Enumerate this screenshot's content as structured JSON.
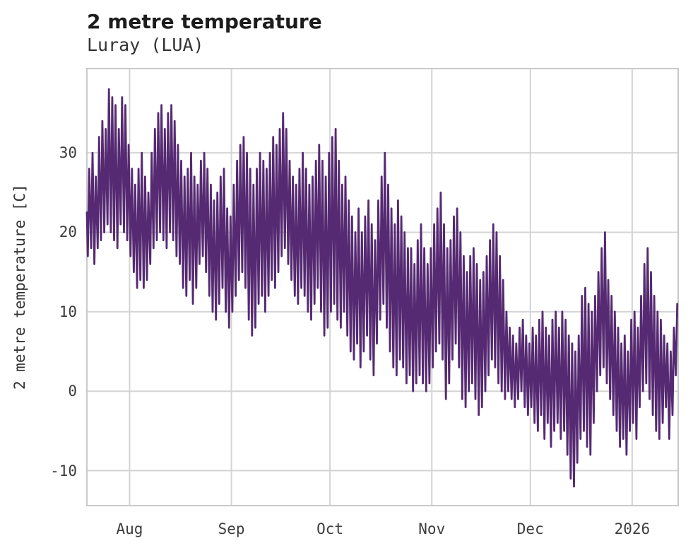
{
  "header": {
    "title": "2 metre temperature",
    "subtitle": "Luray (LUA)"
  },
  "chart_data": {
    "type": "line",
    "title": "2 metre temperature",
    "subtitle": "Luray (LUA)",
    "station": "Luray (LUA)",
    "ylabel": "2 metre temperature [C]",
    "legend_position": "none",
    "grid": true,
    "line_color": "#562a72",
    "grid_color": "#d4d4d4",
    "spine_color": "#c9c9c9",
    "tick_text_color": "#3d3d3d",
    "title_color": "#1c1c1c",
    "ylim": [
      -14.4,
      40.6
    ],
    "yticks": [
      30,
      20,
      10,
      0,
      -10
    ],
    "x_domain_days": [
      0,
      180
    ],
    "x_start": "Jul 19",
    "xticks": [
      {
        "label": "Aug",
        "day": 13
      },
      {
        "label": "Sep",
        "day": 44
      },
      {
        "label": "Oct",
        "day": 74
      },
      {
        "label": "Nov",
        "day": 105
      },
      {
        "label": "Dec",
        "day": 135
      },
      {
        "label": "2026",
        "day": 166
      }
    ],
    "sampling_note": "daily min/max envelope estimated from hourly trace, days from Jul 19 through Jan 14",
    "daily_tmin": [
      17,
      18,
      16,
      18,
      19,
      20,
      21,
      20,
      19,
      18,
      21,
      20,
      19,
      17,
      15,
      13,
      14,
      13,
      14,
      16,
      18,
      19,
      20,
      19,
      18,
      20,
      19,
      17,
      16,
      13,
      12,
      14,
      11,
      13,
      16,
      17,
      15,
      12,
      10,
      9,
      11,
      13,
      10,
      8,
      10,
      12,
      14,
      15,
      13,
      9,
      7,
      8,
      11,
      12,
      10,
      12,
      14,
      13,
      15,
      17,
      18,
      16,
      14,
      12,
      11,
      13,
      12,
      10,
      9,
      11,
      13,
      10,
      7,
      8,
      10,
      11,
      9,
      8,
      10,
      7,
      5,
      4,
      6,
      3,
      5,
      7,
      4,
      2,
      6,
      9,
      11,
      8,
      5,
      3,
      2,
      4,
      3,
      1,
      2,
      0,
      1,
      2,
      1,
      0,
      1,
      3,
      5,
      6,
      4,
      -1,
      1,
      4,
      6,
      3,
      -1,
      -2,
      0,
      1,
      -1,
      -3,
      -2,
      0,
      2,
      4,
      3,
      1,
      0,
      -1,
      0,
      -1,
      -2,
      -1,
      0,
      -2,
      -3,
      -2,
      -4,
      -5,
      -3,
      -6,
      -4,
      -7,
      -5,
      -4,
      -6,
      -5,
      -8,
      -11,
      -12,
      -9,
      -6,
      -5,
      -7,
      -8,
      -4,
      0,
      2,
      3,
      1,
      -1,
      -3,
      -5,
      -7,
      -6,
      -8,
      -5,
      -4,
      -6,
      -2,
      0,
      1,
      -1,
      -3,
      -5,
      -6,
      -4,
      -2,
      -6,
      -3,
      2
    ],
    "daily_tmax": [
      28,
      30,
      27,
      32,
      34,
      33,
      38,
      37,
      36,
      33,
      37,
      36,
      31,
      28,
      26,
      28,
      30,
      27,
      25,
      30,
      33,
      35,
      36,
      33,
      35,
      36,
      34,
      31,
      29,
      27,
      28,
      30,
      27,
      26,
      29,
      30,
      28,
      26,
      24,
      25,
      27,
      28,
      23,
      22,
      26,
      29,
      31,
      32,
      30,
      28,
      26,
      28,
      30,
      29,
      28,
      30,
      32,
      31,
      33,
      35,
      33,
      29,
      27,
      26,
      28,
      30,
      28,
      26,
      27,
      29,
      31,
      29,
      27,
      30,
      32,
      33,
      29,
      26,
      27,
      24,
      22,
      20,
      23,
      20,
      22,
      24,
      21,
      19,
      24,
      27,
      30,
      26,
      23,
      21,
      24,
      22,
      20,
      18,
      18,
      16,
      19,
      21,
      18,
      16,
      18,
      21,
      23,
      25,
      21,
      18,
      19,
      22,
      23,
      20,
      17,
      15,
      17,
      18,
      16,
      14,
      15,
      17,
      19,
      21,
      20,
      17,
      14,
      10,
      8,
      7,
      6,
      8,
      9,
      7,
      6,
      8,
      7,
      9,
      10,
      8,
      7,
      9,
      10,
      8,
      10,
      9,
      7,
      6,
      5,
      7,
      12,
      13,
      11,
      10,
      12,
      15,
      18,
      20,
      14,
      12,
      10,
      8,
      6,
      7,
      5,
      9,
      10,
      8,
      12,
      16,
      18,
      15,
      12,
      10,
      9,
      7,
      6,
      5,
      8,
      11
    ]
  }
}
